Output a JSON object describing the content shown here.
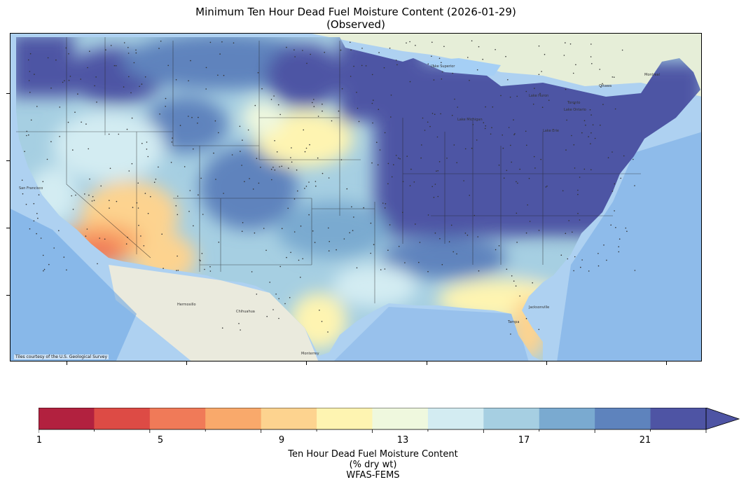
{
  "title": {
    "line1": "Minimum Ten Hour Dead Fuel Moisture Content (2026-01-29)",
    "line2": "(Observed)"
  },
  "map": {
    "attribution": "Tiles courtesy of the U.S. Geological Survey",
    "place_labels": [
      "San Francisco",
      "Chihuahua",
      "Hermosillo",
      "Monterrey",
      "Jacksonville",
      "Tampa",
      "Lake Superior",
      "Lake Michigan",
      "Lake Huron",
      "Lake Erie",
      "Lake Ontario",
      "Ottawa",
      "Montreal",
      "Toronto"
    ]
  },
  "colorbar": {
    "colors": [
      "#b2213f",
      "#dd4b45",
      "#f07a58",
      "#f9a96b",
      "#fdd38f",
      "#fef4b1",
      "#eff8de",
      "#d3ecf2",
      "#a6cfe2",
      "#7aaad0",
      "#5e83bd",
      "#4e54a4"
    ],
    "extend_color": "#4e54a4",
    "tick_labels": [
      "1",
      "5",
      "9",
      "13",
      "17",
      "21"
    ],
    "label_line1": "Ten Hour Dead Fuel Moisture Content",
    "label_line2": "(% dry wt)",
    "label_line3": "WFAS-FEMS"
  }
}
